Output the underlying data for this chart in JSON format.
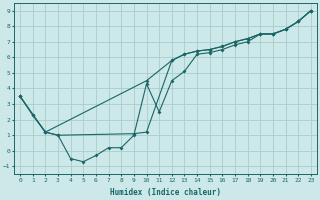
{
  "xlabel": "Humidex (Indice chaleur)",
  "xlim": [
    -0.5,
    23.5
  ],
  "ylim": [
    -1.5,
    9.5
  ],
  "xticks": [
    0,
    1,
    2,
    3,
    4,
    5,
    6,
    7,
    8,
    9,
    10,
    11,
    12,
    13,
    14,
    15,
    16,
    17,
    18,
    19,
    20,
    21,
    22,
    23
  ],
  "yticks": [
    -1,
    0,
    1,
    2,
    3,
    4,
    5,
    6,
    7,
    8,
    9
  ],
  "background_color": "#cce8e8",
  "grid_color": "#aacccc",
  "line_color": "#1a6666",
  "line1_x": [
    0,
    1,
    2,
    3,
    4,
    5,
    6,
    7,
    8,
    9,
    10,
    11,
    12,
    13,
    14,
    15,
    16,
    17,
    18,
    19,
    20,
    21,
    22,
    23
  ],
  "line1_y": [
    3.5,
    2.3,
    1.2,
    1.0,
    -0.5,
    -0.7,
    -0.3,
    0.2,
    0.2,
    1.0,
    4.3,
    2.5,
    4.5,
    5.1,
    6.2,
    6.3,
    6.5,
    6.8,
    7.0,
    7.5,
    7.5,
    7.8,
    8.3,
    9.0
  ],
  "line2_x": [
    0,
    1,
    2,
    10,
    12,
    13,
    14,
    15,
    16,
    17,
    18,
    19,
    20,
    21,
    22,
    23
  ],
  "line2_y": [
    3.5,
    2.3,
    1.2,
    4.5,
    5.8,
    6.2,
    6.4,
    6.5,
    6.7,
    7.0,
    7.2,
    7.5,
    7.5,
    7.8,
    8.3,
    9.0
  ],
  "line3_x": [
    0,
    2,
    3,
    9,
    10,
    12,
    13,
    14,
    15,
    16,
    17,
    18,
    19,
    20,
    21,
    22,
    23
  ],
  "line3_y": [
    3.5,
    1.2,
    1.0,
    1.1,
    1.2,
    5.8,
    6.2,
    6.4,
    6.5,
    6.7,
    7.0,
    7.2,
    7.5,
    7.5,
    7.8,
    8.3,
    9.0
  ]
}
